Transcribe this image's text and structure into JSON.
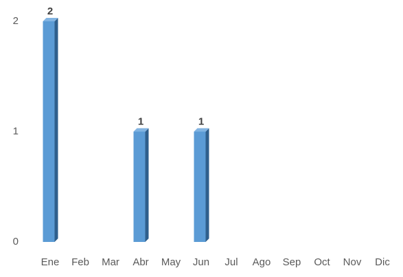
{
  "chart_data": {
    "type": "bar3d",
    "categories": [
      "Ene",
      "Feb",
      "Mar",
      "Abr",
      "May",
      "Jun",
      "Jul",
      "Ago",
      "Sep",
      "Oct",
      "Nov",
      "Dic"
    ],
    "values": [
      2,
      0,
      0,
      1,
      0,
      1,
      0,
      0,
      0,
      0,
      0,
      0
    ],
    "color": "#5b9bd5",
    "ylim": [
      0,
      2
    ],
    "yticks": [
      0,
      1,
      2
    ],
    "grid": false
  }
}
